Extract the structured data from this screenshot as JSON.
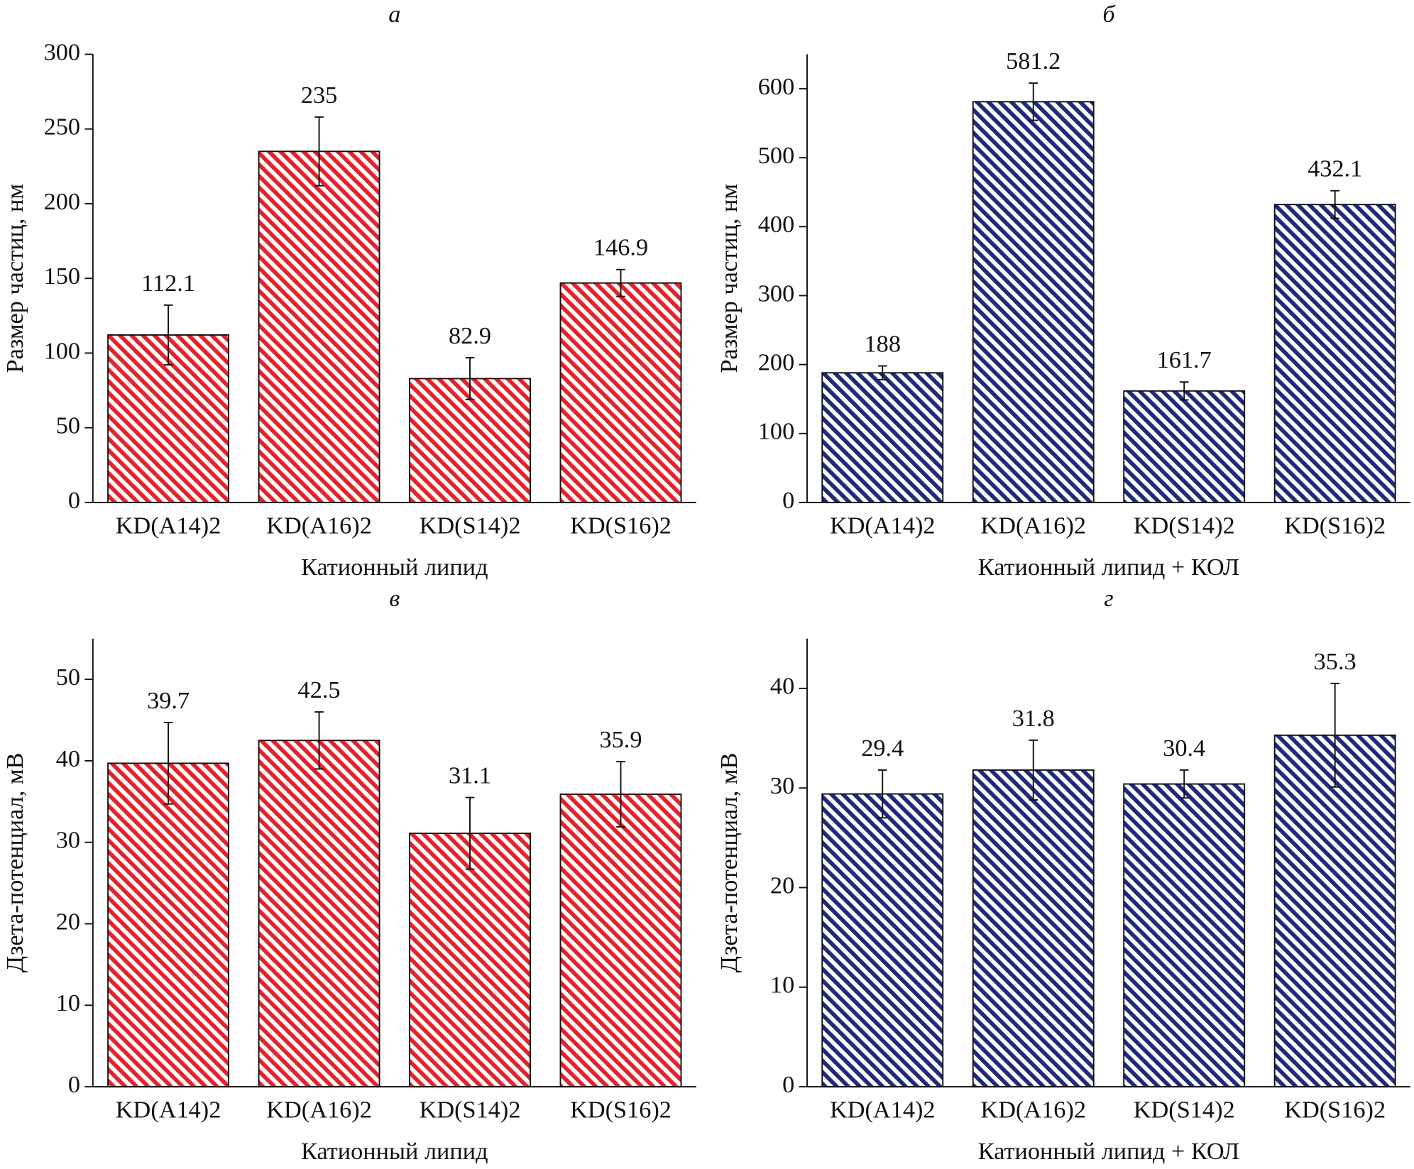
{
  "chart_data": [
    {
      "type": "bar",
      "title": "а",
      "xlabel": "Катионный липид",
      "ylabel": "Размер частиц, нм",
      "categories": [
        "KD(A14)2",
        "KD(A16)2",
        "KD(S14)2",
        "KD(S16)2"
      ],
      "values": [
        112.1,
        235,
        82.9,
        146.9
      ],
      "errors": [
        20,
        23,
        14,
        9
      ],
      "color": "#e8202a",
      "ylim": [
        0,
        300
      ],
      "yticks": [
        0,
        50,
        100,
        150,
        200,
        250,
        300
      ]
    },
    {
      "type": "bar",
      "title": "б",
      "xlabel": "Катионный липид + КОЛ",
      "ylabel": "Размер частиц, нм",
      "categories": [
        "KD(A14)2",
        "KD(A16)2",
        "KD(S14)2",
        "KD(S16)2"
      ],
      "values": [
        188,
        581.2,
        161.7,
        432.1
      ],
      "errors": [
        10,
        27,
        13,
        20
      ],
      "color": "#1f2a7a",
      "ylim": [
        0,
        650
      ],
      "yticks": [
        0,
        100,
        200,
        300,
        400,
        500,
        600
      ]
    },
    {
      "type": "bar",
      "title": "в",
      "xlabel": "Катионный липид",
      "ylabel": "Дзета-потенциал, мВ",
      "categories": [
        "KD(A14)2",
        "KD(A16)2",
        "KD(S14)2",
        "KD(S16)2"
      ],
      "values": [
        39.7,
        42.5,
        31.1,
        35.9
      ],
      "errors": [
        5,
        3.5,
        4.4,
        4
      ],
      "color": "#e8202a",
      "ylim": [
        0,
        55
      ],
      "yticks": [
        0,
        10,
        20,
        30,
        40,
        50
      ]
    },
    {
      "type": "bar",
      "title": "г",
      "xlabel": "Катионный липид + КОЛ",
      "ylabel": "Дзета-потенциал, мВ",
      "categories": [
        "KD(A14)2",
        "KD(A16)2",
        "KD(S14)2",
        "KD(S16)2"
      ],
      "values": [
        29.4,
        31.8,
        30.4,
        35.3
      ],
      "errors": [
        2.4,
        3,
        1.4,
        5.2
      ],
      "color": "#1f2a7a",
      "ylim": [
        0,
        45
      ],
      "yticks": [
        0,
        10,
        20,
        30,
        40
      ]
    }
  ]
}
